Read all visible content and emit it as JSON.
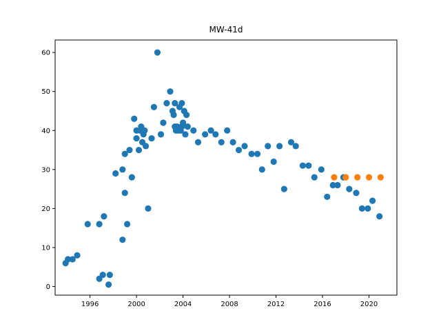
{
  "chart_data": {
    "type": "scatter",
    "title": "MW-41d",
    "xlabel": "",
    "ylabel": "",
    "xlim": [
      1993.0,
      2022.4
    ],
    "ylim": [
      -2.2,
      63.2
    ],
    "x_ticks": [
      1996,
      2000,
      2004,
      2008,
      2012,
      2016,
      2020
    ],
    "y_ticks": [
      0,
      10,
      20,
      30,
      40,
      50,
      60
    ],
    "grid": false,
    "legend": "none",
    "series": [
      {
        "color": "#1f77b4",
        "points": [
          [
            1993.9,
            6
          ],
          [
            1994.1,
            7
          ],
          [
            1994.5,
            7
          ],
          [
            1994.9,
            8
          ],
          [
            1995.8,
            16
          ],
          [
            1996.8,
            16
          ],
          [
            1996.8,
            2
          ],
          [
            1997.1,
            3
          ],
          [
            1997.2,
            18
          ],
          [
            1997.6,
            0.5
          ],
          [
            1997.7,
            3
          ],
          [
            1998.2,
            29
          ],
          [
            1998.8,
            12
          ],
          [
            1998.8,
            30
          ],
          [
            1999.0,
            34
          ],
          [
            1999.0,
            24
          ],
          [
            1999.2,
            16
          ],
          [
            1999.4,
            35
          ],
          [
            1999.6,
            28
          ],
          [
            1999.8,
            43
          ],
          [
            2000.0,
            38
          ],
          [
            2000.0,
            40
          ],
          [
            2000.2,
            35
          ],
          [
            2000.3,
            40
          ],
          [
            2000.4,
            41
          ],
          [
            2000.5,
            37
          ],
          [
            2000.6,
            39
          ],
          [
            2000.7,
            40
          ],
          [
            2000.8,
            36
          ],
          [
            2001.0,
            20
          ],
          [
            2001.3,
            38
          ],
          [
            2001.5,
            46
          ],
          [
            2001.8,
            60
          ],
          [
            2002.1,
            39
          ],
          [
            2002.3,
            42
          ],
          [
            2002.6,
            47
          ],
          [
            2002.9,
            50
          ],
          [
            2003.1,
            45
          ],
          [
            2003.2,
            44
          ],
          [
            2003.3,
            41
          ],
          [
            2003.3,
            47
          ],
          [
            2003.4,
            40
          ],
          [
            2003.5,
            41
          ],
          [
            2003.6,
            40
          ],
          [
            2003.7,
            46
          ],
          [
            2003.8,
            40
          ],
          [
            2003.9,
            41
          ],
          [
            2003.9,
            47
          ],
          [
            2004.0,
            42
          ],
          [
            2004.1,
            45
          ],
          [
            2004.2,
            39
          ],
          [
            2004.3,
            44
          ],
          [
            2004.4,
            41
          ],
          [
            2004.9,
            40
          ],
          [
            2005.3,
            37
          ],
          [
            2005.9,
            39
          ],
          [
            2006.4,
            40
          ],
          [
            2006.8,
            39
          ],
          [
            2007.3,
            37
          ],
          [
            2007.8,
            40
          ],
          [
            2008.3,
            37
          ],
          [
            2008.8,
            35
          ],
          [
            2009.3,
            36
          ],
          [
            2009.9,
            34
          ],
          [
            2010.4,
            34
          ],
          [
            2010.8,
            30
          ],
          [
            2011.3,
            36
          ],
          [
            2011.8,
            32
          ],
          [
            2012.3,
            36
          ],
          [
            2012.7,
            25
          ],
          [
            2013.3,
            37
          ],
          [
            2013.7,
            36
          ],
          [
            2014.3,
            31
          ],
          [
            2014.8,
            31
          ],
          [
            2015.3,
            28
          ],
          [
            2015.9,
            30
          ],
          [
            2016.4,
            23
          ],
          [
            2016.9,
            26
          ],
          [
            2017.3,
            26
          ],
          [
            2017.8,
            28
          ],
          [
            2018.3,
            25
          ],
          [
            2018.9,
            24
          ],
          [
            2019.4,
            20
          ],
          [
            2019.9,
            20
          ],
          [
            2020.3,
            22
          ],
          [
            2020.9,
            18
          ]
        ]
      },
      {
        "color": "#ff7f0e",
        "points": [
          [
            2017.0,
            28
          ],
          [
            2018.0,
            28
          ],
          [
            2019.0,
            28
          ],
          [
            2020.0,
            28
          ],
          [
            2021.0,
            28
          ]
        ]
      }
    ]
  }
}
